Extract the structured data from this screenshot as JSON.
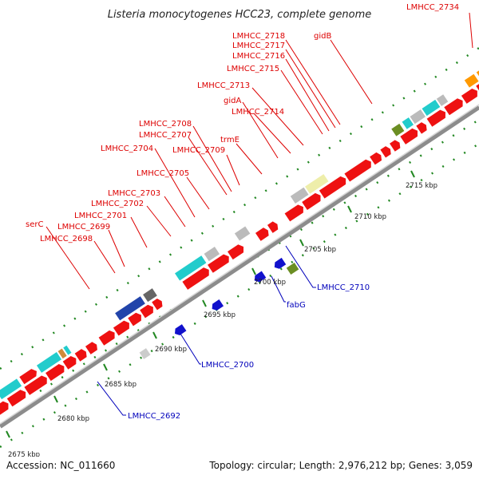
{
  "header": {
    "title": "Listeria monocytogenes HCC23, complete genome"
  },
  "footer": {
    "accession": "Accession: NC_011660",
    "summary": "Topology: circular; Length: 2,976,212 bp; Genes: 3,059"
  },
  "colors": {
    "forward_label": "#dd0000",
    "reverse_label": "#0000bb",
    "gene_red": "#ee1111",
    "gene_cyan": "#22cccc",
    "gene_gray": "#bbbbbb",
    "gene_darkgray": "#666666",
    "gene_blue": "#2244aa",
    "gene_khaki": "#eeeeaa",
    "gene_olive": "#6b8e23",
    "gene_orange": "#ff9900",
    "gene_darkblue": "#1111cc",
    "tick": "#228822",
    "backbone": "#8c8c8c"
  },
  "forward_labels": [
    "LMHCC_2734",
    "gidB",
    "LMHCC_2718",
    "LMHCC_2717",
    "LMHCC_2716",
    "LMHCC_2715",
    "LMHCC_2713",
    "gidA",
    "LMHCC_2714",
    "LMHCC_2708",
    "LMHCC_2707",
    "trmE",
    "LMHCC_2704",
    "LMHCC_2709",
    "LMHCC_2705",
    "LMHCC_2703",
    "LMHCC_2702",
    "LMHCC_2701",
    "serC",
    "LMHCC_2699",
    "LMHCC_2698"
  ],
  "reverse_labels": [
    "LMHCC_2710",
    "fabG",
    "LMHCC_2700",
    "LMHCC_2692"
  ],
  "scale_ticks": [
    "2715 kbp",
    "2710 kbp",
    "2705 kbp",
    "2700 kbp",
    "2695 kbp",
    "2690 kbp",
    "2685 kbp",
    "2680 kbp",
    "2675 kbp"
  ]
}
